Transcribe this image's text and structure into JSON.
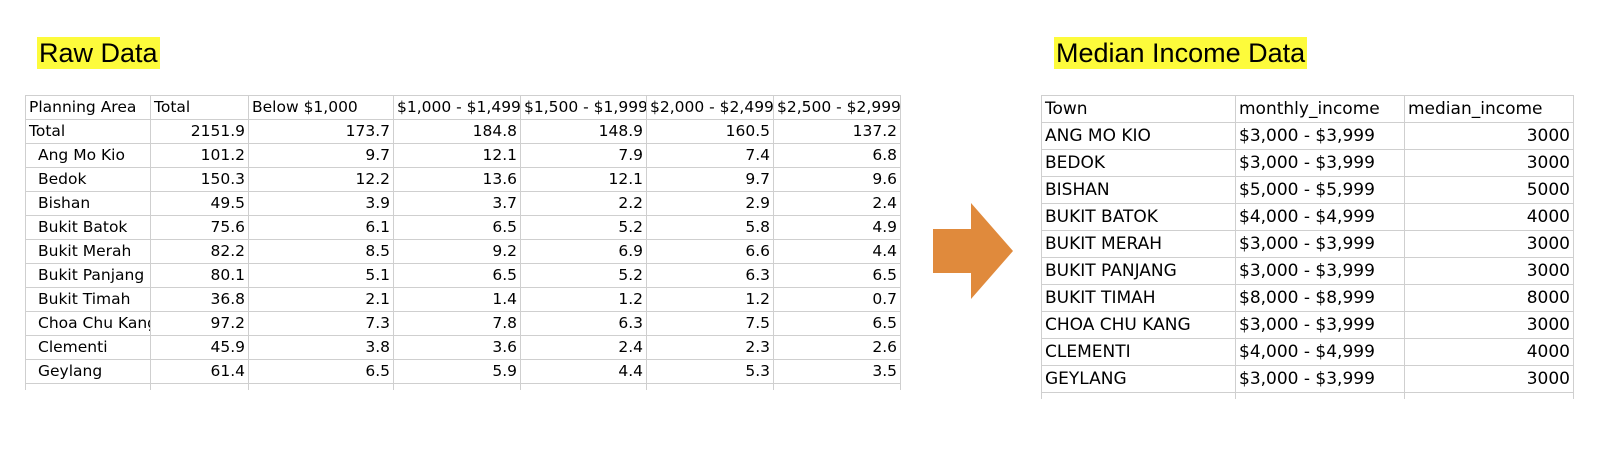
{
  "raw": {
    "heading": "Raw Data",
    "headers": [
      "Planning Area",
      "Total",
      "Below $1,000",
      "$1,000 - $1,499",
      "$1,500 - $1,999",
      "$2,000 - $2,499",
      "$2,500 - $2,999"
    ],
    "rows": [
      [
        "Total",
        "2151.9",
        "173.7",
        "184.8",
        "148.9",
        "160.5",
        "137.2"
      ],
      [
        "Ang Mo Kio",
        "101.2",
        "9.7",
        "12.1",
        "7.9",
        "7.4",
        "6.8"
      ],
      [
        "Bedok",
        "150.3",
        "12.2",
        "13.6",
        "12.1",
        "9.7",
        "9.6"
      ],
      [
        "Bishan",
        "49.5",
        "3.9",
        "3.7",
        "2.2",
        "2.9",
        "2.4"
      ],
      [
        "Bukit Batok",
        "75.6",
        "6.1",
        "6.5",
        "5.2",
        "5.8",
        "4.9"
      ],
      [
        "Bukit Merah",
        "82.2",
        "8.5",
        "9.2",
        "6.9",
        "6.6",
        "4.4"
      ],
      [
        "Bukit Panjang",
        "80.1",
        "5.1",
        "6.5",
        "5.2",
        "6.3",
        "6.5"
      ],
      [
        "Bukit Timah",
        "36.8",
        "2.1",
        "1.4",
        "1.2",
        "1.2",
        "0.7"
      ],
      [
        "Choa Chu Kang",
        "97.2",
        "7.3",
        "7.8",
        "6.3",
        "7.5",
        "6.5"
      ],
      [
        "Clementi",
        "45.9",
        "3.8",
        "3.6",
        "2.4",
        "2.3",
        "2.6"
      ],
      [
        "Geylang",
        "61.4",
        "6.5",
        "5.9",
        "4.4",
        "5.3",
        "3.5"
      ]
    ]
  },
  "arrow": {
    "icon": "right-arrow-icon",
    "color": "#e08a3c"
  },
  "median": {
    "heading": "Median Income Data",
    "headers": [
      "Town",
      "monthly_income",
      "median_income"
    ],
    "rows": [
      [
        "ANG MO KIO",
        "$3,000 - $3,999",
        "3000"
      ],
      [
        "BEDOK",
        "$3,000 - $3,999",
        "3000"
      ],
      [
        "BISHAN",
        "$5,000 - $5,999",
        "5000"
      ],
      [
        "BUKIT BATOK",
        "$4,000 - $4,999",
        "4000"
      ],
      [
        "BUKIT MERAH",
        "$3,000 - $3,999",
        "3000"
      ],
      [
        "BUKIT PANJANG",
        "$3,000 - $3,999",
        "3000"
      ],
      [
        "BUKIT TIMAH",
        "$8,000 - $8,999",
        "8000"
      ],
      [
        "CHOA CHU KANG",
        "$3,000 - $3,999",
        "3000"
      ],
      [
        "CLEMENTI",
        "$4,000 - $4,999",
        "4000"
      ],
      [
        "GEYLANG",
        "$3,000 - $3,999",
        "3000"
      ]
    ]
  }
}
